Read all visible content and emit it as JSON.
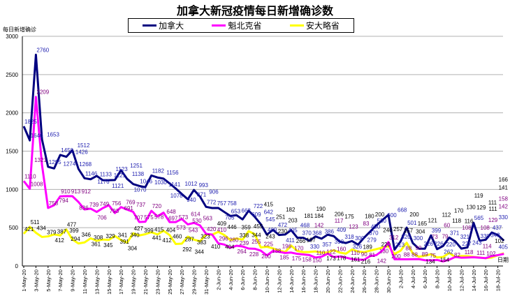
{
  "chart_data": {
    "type": "line",
    "title": "加拿大新冠疫情每日新增确诊数",
    "ylabel": "每日新增确诊",
    "xlabel": "日期",
    "ylim": [
      0,
      3000
    ],
    "yticks": [
      0,
      500,
      1000,
      1500,
      2000,
      2500,
      3000
    ],
    "grid": true,
    "legend_position": "top-center",
    "start_date": "2020-05-01",
    "series": [
      {
        "name": "加拿大",
        "color": "#000080",
        "label_color": "#2020B0",
        "values": [
          1825,
          1640,
          2760,
          1653,
          1295,
          1274,
          1450,
          1426,
          1512,
          1268,
          1146,
          1133,
          1176,
          1121,
          1121,
          1123,
          1251,
          1138,
          1070,
          1046,
          1030,
          1182,
          1156,
          1141,
          1078,
          1012,
          940,
          871,
          993,
          906,
          772,
          757,
          758,
          705,
          653,
          663,
          609,
          722,
          642,
          545,
          409,
          472,
          405,
          411,
          468,
          370,
          368,
          330,
          386,
          357,
          409,
          390,
          318,
          300,
          326,
          279,
          370,
          450,
          530,
          600,
          668,
          213,
          320,
          501,
          300,
          226,
          226,
          399,
          220,
          262,
          371,
          321,
          227,
          243,
          565,
          330,
          343,
          437,
          405,
          330
        ]
      },
      {
        "name": "魁北克省",
        "color": "#FF00FF",
        "label_color": "#800080",
        "values": [
          1110,
          1008,
          2209,
          1321,
          758,
          794,
          910,
          913,
          912,
          836,
          739,
          749,
          706,
          756,
          793,
          691,
          769,
          737,
          707,
          575,
          578,
          720,
          648,
          697,
          573,
          573,
          614,
          543,
          563,
          530,
          420,
          410,
          296,
          280,
          239,
          264,
          255,
          228,
          225,
          200,
          138,
          196,
          185,
          170,
          175,
          158,
          150,
          142,
          110,
          122,
          160,
          117,
          123,
          110,
          90,
          83,
          81,
          130,
          142,
          200,
          312,
          88,
          88,
          88,
          89,
          90,
          75,
          73,
          79,
          60,
          82,
          118,
          108,
          111,
          114,
          108,
          102,
          129,
          142,
          158
        ]
      },
      {
        "name": "安大略省",
        "color": "#FFFF00",
        "label_color": "#000000",
        "values": [
          421,
          511,
          434,
          379,
          387,
          412,
          399,
          477,
          346,
          294,
          308,
          361,
          329,
          345,
          341,
          391,
          340,
          304,
          427,
          399,
          415,
          441,
          412,
          460,
          404,
          287,
          292,
          383,
          344,
          323,
          410,
          409,
          446,
          404,
          338,
          359,
          344,
          455,
          415,
          243,
          251,
          230,
          203,
          182,
          266,
          197,
          181,
          184,
          190,
          173,
          178,
          206,
          175,
          161,
          216,
          189,
          180,
          200,
          220,
          240,
          257,
          157,
          200,
          304,
          165,
          121,
          134,
          154,
          112,
          118,
          170,
          116,
          130,
          129,
          119,
          111,
          102,
          111,
          141,
          166
        ]
      }
    ],
    "x_tick_labels": [
      "1-May-20",
      "3-May-20",
      "5-May-20",
      "7-May-20",
      "9-May-20",
      "11-May-20",
      "13-May-20",
      "15-May-20",
      "17-May-20",
      "19-May-20",
      "21-May-20",
      "23-May-20",
      "25-May-20",
      "27-May-20",
      "29-May-20",
      "31-May-20",
      "2-Jun-20",
      "4-Jun-20",
      "6-Jun-20",
      "8-Jun-20",
      "10-Jun-20",
      "12-Jun-20",
      "14-Jun-20",
      "16-Jun-20",
      "18-Jun-20",
      "20-Jun-20",
      "22-Jun-20",
      "24-Jun-20",
      "26-Jun-20",
      "28-Jun-20",
      "30-Jun-20",
      "2-Jul-20",
      "4-Jul-20",
      "6-Jul-20",
      "8-Jul-20",
      "10-Jul-20",
      "12-Jul-20",
      "14-Jul-20",
      "16-Jul-20",
      "18-Jul-20"
    ]
  }
}
